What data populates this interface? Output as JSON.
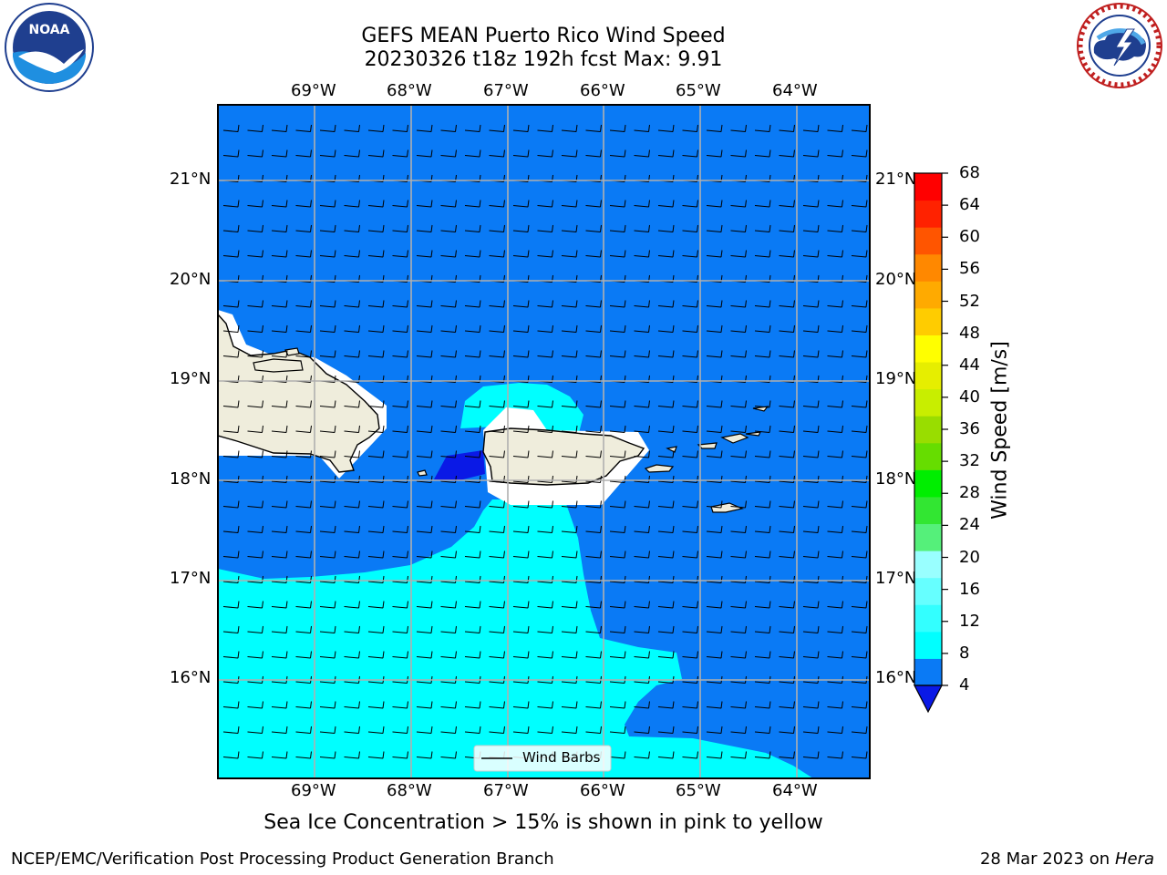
{
  "header": {
    "title_line1": "GEFS MEAN Puerto Rico Wind Speed",
    "title_line2": "20230326 t18z 192h fcst   Max: 9.91"
  },
  "logos": {
    "left": "noaa-logo",
    "right": "national-weather-service-logo"
  },
  "map": {
    "lon_labels": [
      "69°W",
      "68°W",
      "67°W",
      "66°W",
      "65°W",
      "64°W"
    ],
    "lat_labels": [
      "21°N",
      "20°N",
      "19°N",
      "18°N",
      "17°N",
      "16°N"
    ],
    "ocean_color": "#0a7af5",
    "mid_speed_color": "#00ffff",
    "low_speed_color": "#0a19e6",
    "land_color": "#efeddc",
    "grid_color": "#b0b0b0"
  },
  "colorbar": {
    "ticks": [
      "4",
      "8",
      "12",
      "16",
      "20",
      "24",
      "28",
      "32",
      "36",
      "40",
      "44",
      "48",
      "52",
      "56",
      "60",
      "64",
      "68"
    ],
    "colors": [
      "#0a7af5",
      "#00ffff",
      "#33ffff",
      "#66ffff",
      "#99ffff",
      "#55f07a",
      "#32e632",
      "#00ee00",
      "#66dd00",
      "#99dd00",
      "#c8ee00",
      "#e6ee00",
      "#ffff00",
      "#ffcc00",
      "#ffaa00",
      "#ff8800",
      "#ff5500",
      "#ff2200",
      "#ff0000"
    ],
    "under_color": "#0a19e6",
    "label": "Wind Speed [m/s]"
  },
  "legend": {
    "label": "Wind Barbs"
  },
  "notes": {
    "sea_ice": "Sea Ice Concentration > 15% is shown in pink to yellow"
  },
  "footer": {
    "branch": "NCEP/EMC/Verification Post Processing Product Generation Branch",
    "date": "28 Mar 2023 on",
    "machine": "Hera"
  }
}
